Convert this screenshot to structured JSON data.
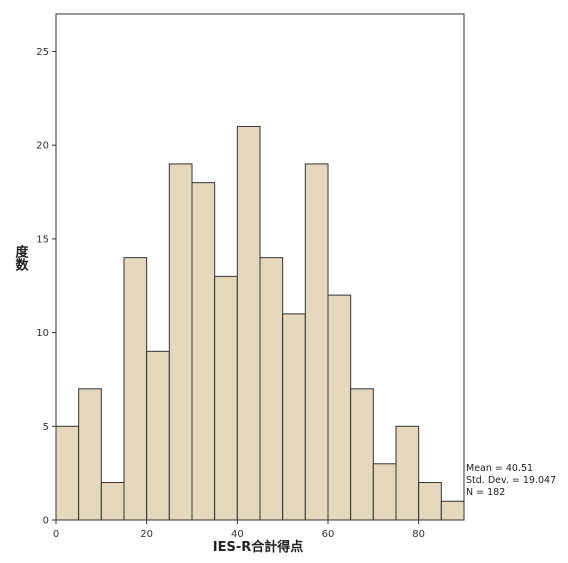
{
  "chart_data": {
    "type": "bar",
    "subtype": "histogram",
    "bin_edges": [
      0,
      5,
      10,
      15,
      20,
      25,
      30,
      35,
      40,
      45,
      50,
      55,
      60,
      65,
      70,
      75,
      80,
      85,
      90
    ],
    "values": [
      5,
      7,
      2,
      14,
      9,
      19,
      18,
      13,
      21,
      14,
      11,
      19,
      12,
      7,
      3,
      5,
      2,
      1
    ],
    "xlabel": "IES-R合計得点",
    "ylabel": "度数",
    "xlim": [
      0,
      90
    ],
    "ylim": [
      0,
      27
    ],
    "x_ticks": [
      0,
      20,
      40,
      60,
      80
    ],
    "y_ticks": [
      0,
      5,
      10,
      15,
      20,
      25
    ],
    "grid": false,
    "bar_fill": "#e5d8bd",
    "bar_stroke": "#333333",
    "stats": {
      "mean": "Mean = 40.51",
      "std": "Std. Dev. = 19.047",
      "n": "N = 182"
    }
  }
}
